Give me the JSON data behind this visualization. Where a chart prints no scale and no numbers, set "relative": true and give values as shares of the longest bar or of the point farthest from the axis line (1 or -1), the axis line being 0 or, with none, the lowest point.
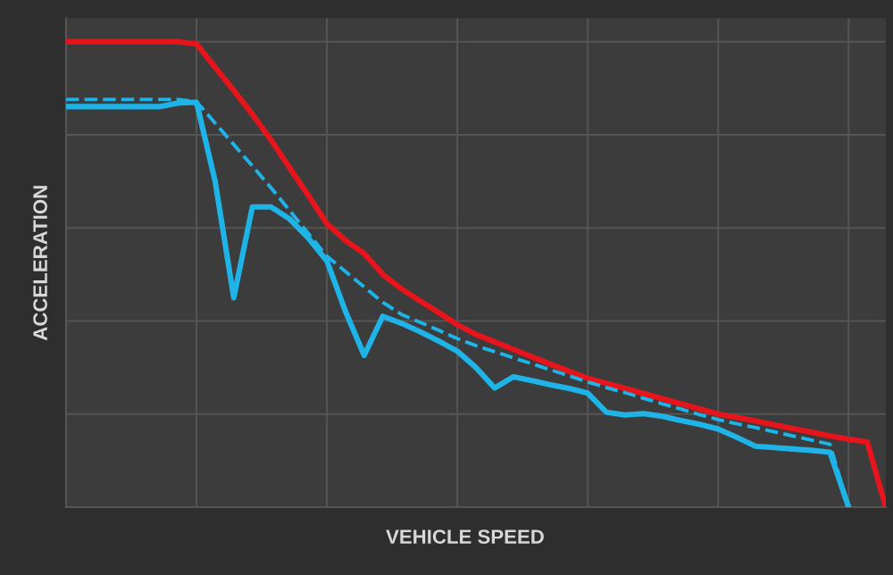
{
  "chart_data": {
    "type": "line",
    "relative": true,
    "xlabel": "VEHICLE SPEED",
    "ylabel": "ACCELERATION",
    "grid": true,
    "categories": [
      null,
      null,
      null,
      null,
      null,
      null,
      null,
      null,
      null,
      null,
      null,
      null,
      null,
      null,
      null,
      null,
      null,
      null,
      null,
      null,
      null,
      null,
      null,
      null,
      null,
      null,
      null,
      null,
      null,
      null,
      null,
      null,
      null,
      null,
      null,
      null,
      null,
      null,
      null,
      null,
      null,
      null,
      null,
      null,
      null
    ],
    "series": [
      {
        "color": "#e8141b",
        "line_style": "solid",
        "values": [
          1,
          1,
          1,
          1,
          1,
          1,
          1,
          0.995,
          0.945,
          0.895,
          0.844,
          0.789,
          0.729,
          0.67,
          0.609,
          0.573,
          0.545,
          0.5,
          0.469,
          0.443,
          0.418,
          0.392,
          0.371,
          0.355,
          0.339,
          0.323,
          0.307,
          0.292,
          0.277,
          0.266,
          0.255,
          0.244,
          0.233,
          0.222,
          0.211,
          0.2,
          0.193,
          0.185,
          0.177,
          0.169,
          0.161,
          0.153,
          0.146,
          0.14,
          0
        ]
      },
      {
        "color": "#1fb4e8",
        "line_style": "dashed",
        "values": [
          0.876,
          0.876,
          0.876,
          0.876,
          0.876,
          0.876,
          0.876,
          0.871,
          0.825,
          0.779,
          0.733,
          0.686,
          0.637,
          0.588,
          0.539,
          0.506,
          0.473,
          0.44,
          0.414,
          0.397,
          0.38,
          0.362,
          0.347,
          0.334,
          0.321,
          0.308,
          0.295,
          0.282,
          0.269,
          0.257,
          0.246,
          0.234,
          0.222,
          0.211,
          0.199,
          0.188,
          0.179,
          0.171,
          0.162,
          0.153,
          0.144,
          0.135,
          0,
          null,
          null
        ]
      },
      {
        "color": "#1fb4e8",
        "line_style": "solid",
        "values": [
          0.8605,
          0.8605,
          0.8605,
          0.8605,
          0.8605,
          0.8605,
          0.868,
          0.87,
          0.7,
          0.45,
          0.645,
          0.645,
          0.619,
          0.578,
          0.529,
          0.42,
          0.326,
          0.41,
          0.395,
          0.377,
          0.357,
          0.335,
          0.3,
          0.256,
          0.28,
          0.272,
          0.263,
          0.255,
          0.245,
          0.204,
          0.198,
          0.201,
          0.195,
          0.186,
          0.178,
          0.168,
          0.15,
          0.131,
          0.128,
          0.125,
          0.122,
          0.118,
          0,
          null,
          null
        ]
      }
    ]
  }
}
